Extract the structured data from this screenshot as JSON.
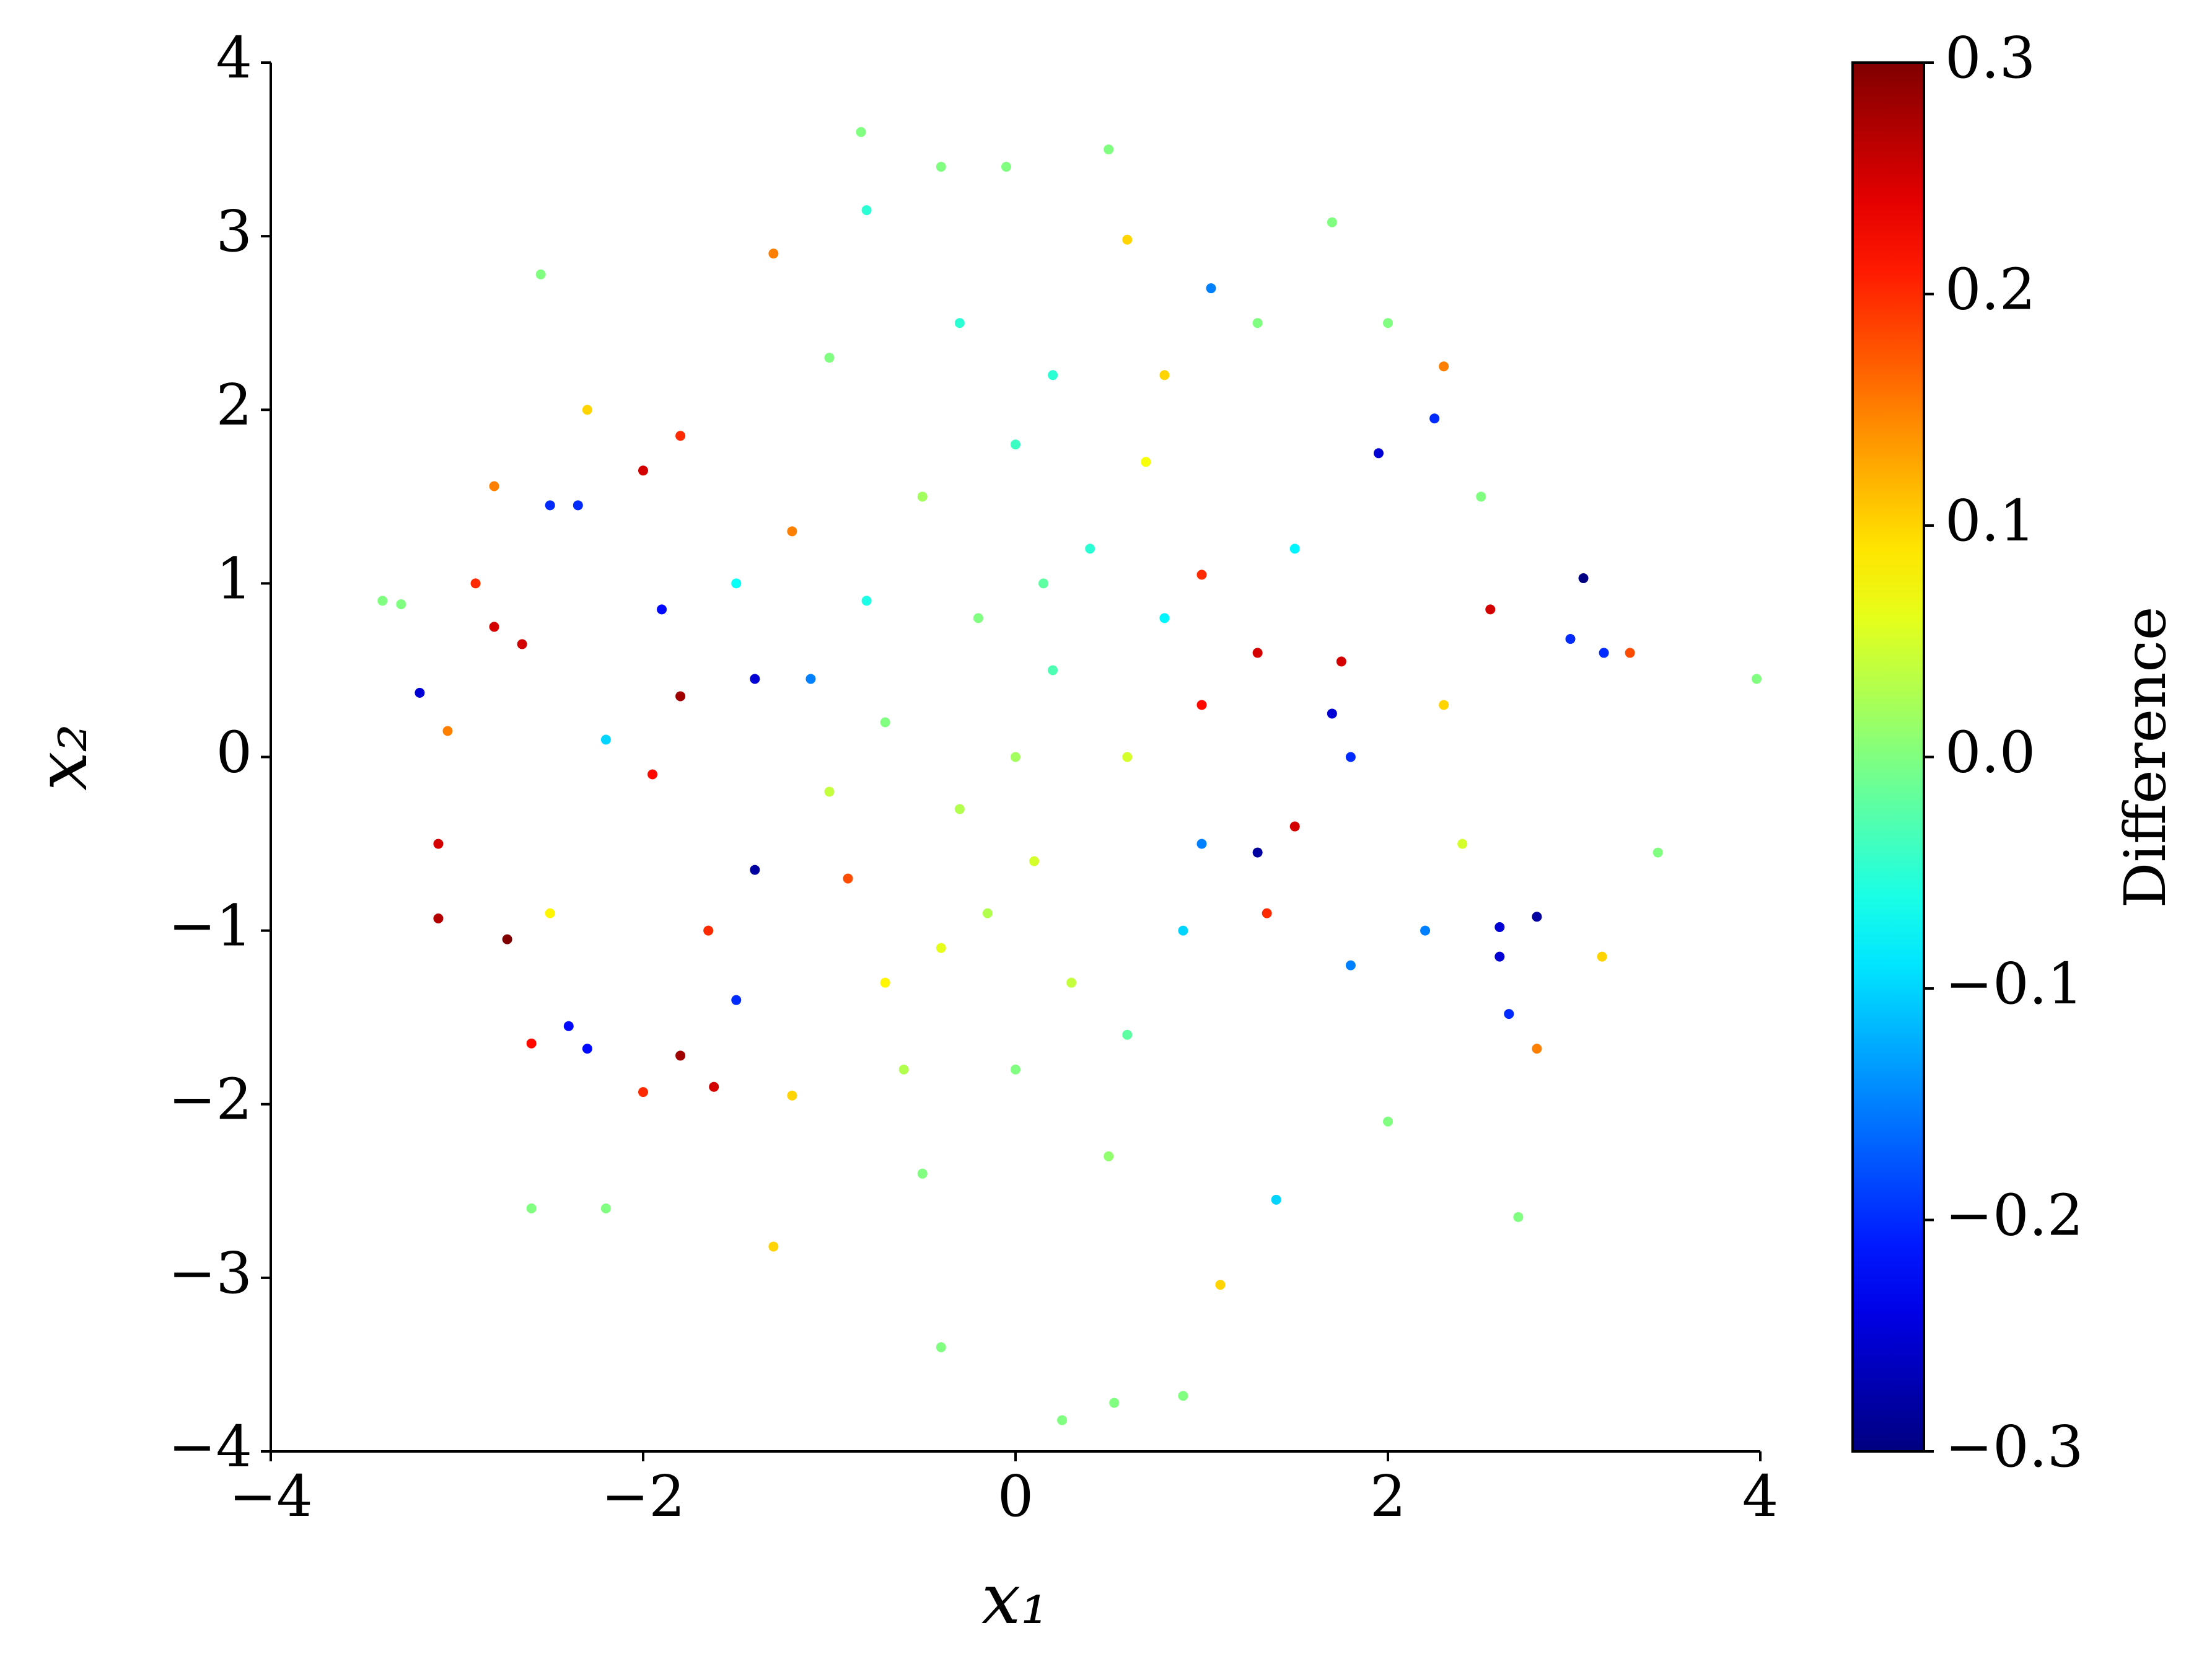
{
  "chart_data": {
    "type": "scatter",
    "colormap": "jet",
    "x_label": "x₁",
    "y_label": "x₂",
    "colorbar_label": "Difference",
    "xlim": [
      -4,
      4
    ],
    "ylim": [
      -4,
      4
    ],
    "clim": [
      -0.3,
      0.3
    ],
    "xticks": [
      {
        "value": -4,
        "label": "−4"
      },
      {
        "value": -2,
        "label": "−2"
      },
      0,
      2,
      4
    ],
    "yticks": [
      {
        "value": -4,
        "label": "−4"
      },
      {
        "value": -3,
        "label": "−3"
      },
      {
        "value": -2,
        "label": "−2"
      },
      {
        "value": -1,
        "label": "−1"
      },
      0,
      1,
      2,
      3,
      4
    ],
    "cticks": [
      {
        "value": -0.3,
        "label": "−0.3"
      },
      {
        "value": -0.2,
        "label": "−0.2"
      },
      {
        "value": -0.1,
        "label": "−0.1"
      },
      {
        "value": 0,
        "label": "0.0"
      },
      0.1,
      0.2,
      0.3
    ],
    "x": [
      -1.3,
      -0.83,
      0.5,
      -0.4,
      -0.05,
      1.7,
      -2.55,
      0.6,
      -0.8,
      1.05,
      2.3,
      2.25,
      1.95,
      3.05,
      2.55,
      3.3,
      3.16,
      2.98,
      3.98,
      3.45,
      3.15,
      2.8,
      2.65,
      2.6,
      2.6,
      2.8,
      2.7,
      1.1,
      0.25,
      0.53,
      0.9,
      -0.4,
      -1.3,
      -2.6,
      -2.2,
      -3.3,
      -3.4,
      -3.2,
      -3.05,
      -3.1,
      -3.1,
      -2.73,
      -2.6,
      -2.4,
      -2.3,
      -1.8,
      -1.62,
      -2.0,
      -2.8,
      -2.9,
      -2.65,
      -2.8,
      -2.5,
      -2.35,
      -2.0,
      -1.8,
      -1.8,
      -1.95,
      -1.4,
      -1.4,
      -1.9,
      -1.1,
      1.3,
      1.7,
      1.0,
      1.0,
      1.3,
      1.75,
      1.5,
      1.35,
      1.0,
      1.8,
      2.3,
      2.2,
      1.8,
      1.4,
      2.0,
      -1.2,
      -1.5,
      -1.65,
      -0.9,
      -1.2,
      0.8,
      1.3,
      -1.0,
      -0.3,
      0.2,
      0,
      0.2,
      -0.2,
      0.1,
      -0.3,
      0.4,
      -0.5,
      0.3,
      -0.4,
      0.6,
      -0.7,
      0.0,
      0.0,
      -0.6,
      0.6,
      0.8,
      -0.8,
      0.5,
      -0.5,
      0.9,
      -1.0,
      0.15,
      -0.15,
      0.7,
      -0.7,
      -1.5,
      1.5,
      -2.2,
      2.4,
      -2.5,
      2.5,
      -2.3,
      2.0
    ],
    "values": [
      2.9,
      3.6,
      3.5,
      3.4,
      3.4,
      3.08,
      2.78,
      2.98,
      3.15,
      2.7,
      2.25,
      1.95,
      1.75,
      1.03,
      0.85,
      0.6,
      0.6,
      0.68,
      0.45,
      -0.55,
      -1.15,
      -1.68,
      -1.48,
      -1.15,
      -0.98,
      -0.92,
      -2.65,
      -3.04,
      -3.82,
      -3.72,
      -3.68,
      -3.4,
      -2.82,
      -2.6,
      -2.6,
      0.88,
      0.9,
      0.37,
      0.15,
      -0.5,
      -0.93,
      -1.05,
      -1.65,
      -1.55,
      -1.68,
      -1.72,
      -1.9,
      -1.93,
      1.56,
      1.0,
      0.65,
      0.75,
      1.45,
      1.45,
      1.65,
      1.85,
      0.35,
      -0.1,
      -0.65,
      0.45,
      0.85,
      0.45,
      -0.55,
      0.25,
      0.3,
      1.05,
      0.6,
      0.55,
      -0.4,
      -0.9,
      -0.5,
      0.0,
      0.3,
      -1.0,
      -1.2,
      -2.55,
      -2.1,
      -1.95,
      -1.4,
      -1.0,
      -0.7,
      1.3,
      2.2,
      2.5,
      2.3,
      2.5,
      2.2,
      0,
      0.5,
      0.8,
      -0.6,
      -0.3,
      1.2,
      1.5,
      -1.3,
      -1.1,
      0.0,
      0.2,
      1.8,
      -1.8,
      -1.8,
      -1.6,
      0.8,
      0.9,
      -2.3,
      -2.4,
      -1.0,
      -0.2,
      1.0,
      -0.9,
      1.7,
      -1.3,
      1.0,
      1.2,
      0.1,
      -0.5,
      -0.9,
      1.5,
      2.0,
      2.5
    ],
    "color_values": [
      0.15,
      0.0,
      0.0,
      0.0,
      0.0,
      0.0,
      0.0,
      0.1,
      -0.05,
      -0.15,
      0.15,
      -0.2,
      -0.25,
      -0.3,
      0.25,
      0.18,
      -0.2,
      -0.2,
      0.0,
      0.0,
      0.1,
      0.15,
      -0.2,
      -0.25,
      -0.25,
      -0.28,
      0.0,
      0.1,
      0.0,
      0.0,
      0.0,
      0.0,
      0.1,
      0.0,
      0.0,
      0.0,
      0.0,
      -0.25,
      0.15,
      0.25,
      0.27,
      0.3,
      0.22,
      -0.22,
      -0.22,
      0.28,
      0.25,
      0.2,
      0.15,
      0.2,
      0.25,
      0.25,
      -0.2,
      -0.2,
      0.25,
      0.2,
      0.28,
      0.22,
      -0.28,
      -0.25,
      -0.22,
      -0.15,
      -0.28,
      -0.25,
      0.22,
      0.2,
      0.25,
      0.25,
      0.25,
      0.2,
      -0.15,
      -0.2,
      0.1,
      -0.15,
      -0.15,
      -0.1,
      0.0,
      0.1,
      -0.2,
      0.2,
      0.18,
      0.15,
      0.1,
      0.0,
      0.0,
      -0.05,
      -0.05,
      0.02,
      -0.03,
      0.0,
      0.05,
      0.03,
      -0.05,
      0.02,
      0.04,
      0.06,
      0.05,
      0.0,
      -0.04,
      0.0,
      0.03,
      -0.02,
      -0.08,
      -0.06,
      0.01,
      0.0,
      -0.1,
      0.04,
      -0.02,
      0.03,
      0.07,
      0.08,
      -0.07,
      -0.08,
      -0.1,
      0.05,
      0.08,
      0.0,
      0.1,
      0.0
    ]
  }
}
